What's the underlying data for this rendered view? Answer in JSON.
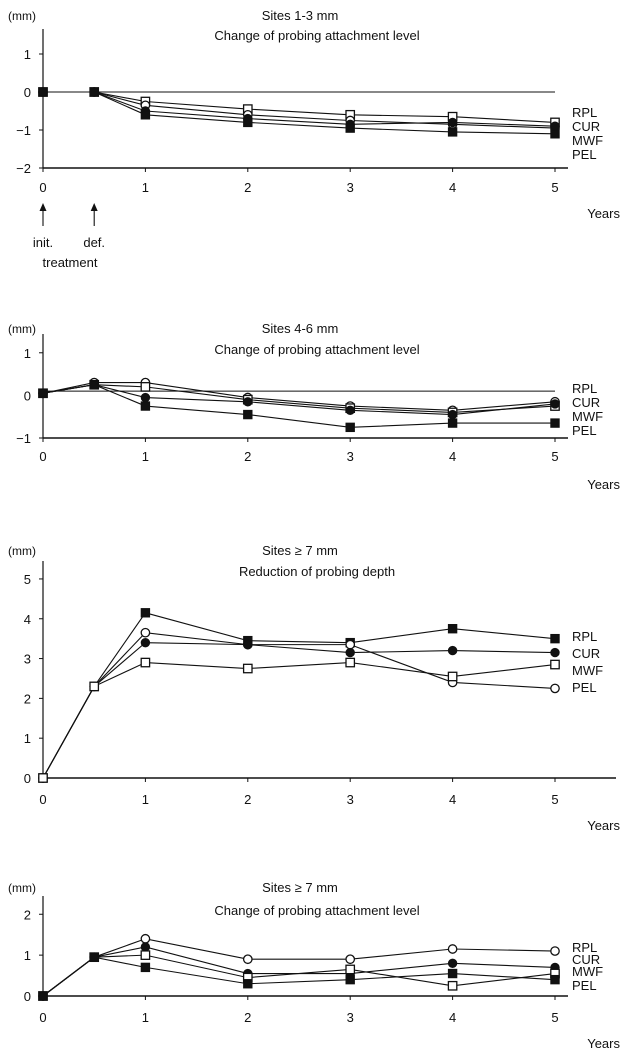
{
  "chart_data": [
    {
      "type": "line",
      "unit": "(mm)",
      "title_line1": "Sites 1-3 mm",
      "title_line2": "Change of probing attachment level",
      "xlabel": "Years",
      "x": [
        0,
        0.5,
        1,
        2,
        3,
        4,
        5
      ],
      "xticks": [
        0,
        1,
        2,
        3,
        4,
        5
      ],
      "yticks": [
        1,
        0,
        -1,
        -2
      ],
      "ylim": [
        -2,
        1.5
      ],
      "reference_line": 0,
      "legend": [
        "RPL",
        "CUR",
        "MWF",
        "PEL"
      ],
      "annotations": [
        "init.",
        "def.",
        "treatment"
      ],
      "series": [
        {
          "marker": "open-square",
          "values": [
            0,
            0,
            -0.25,
            -0.45,
            -0.6,
            -0.65,
            -0.8
          ]
        },
        {
          "marker": "open-circle",
          "values": [
            0,
            0,
            -0.35,
            -0.6,
            -0.75,
            -0.85,
            -0.95
          ]
        },
        {
          "marker": "filled-circle",
          "values": [
            0,
            0,
            -0.5,
            -0.7,
            -0.85,
            -0.8,
            -0.9
          ]
        },
        {
          "marker": "filled-square",
          "values": [
            0,
            0,
            -0.6,
            -0.8,
            -0.95,
            -1.05,
            -1.1
          ]
        }
      ]
    },
    {
      "type": "line",
      "unit": "(mm)",
      "title_line1": "Sites 4-6 mm",
      "title_line2": "Change of probing attachment level",
      "xlabel": "Years",
      "x": [
        0,
        0.5,
        1,
        2,
        3,
        4,
        5
      ],
      "xticks": [
        0,
        1,
        2,
        3,
        4,
        5
      ],
      "yticks": [
        1,
        0,
        -1
      ],
      "ylim": [
        -1,
        1.3
      ],
      "reference_line": 0.1,
      "legend": [
        "RPL",
        "CUR",
        "MWF",
        "PEL"
      ],
      "series": [
        {
          "marker": "open-circle",
          "values": [
            0.05,
            0.3,
            0.3,
            -0.05,
            -0.25,
            -0.35,
            -0.15
          ]
        },
        {
          "marker": "open-square",
          "values": [
            0.05,
            0.25,
            0.2,
            -0.1,
            -0.3,
            -0.4,
            -0.25
          ]
        },
        {
          "marker": "filled-circle",
          "values": [
            0.05,
            0.25,
            -0.05,
            -0.15,
            -0.35,
            -0.45,
            -0.2
          ]
        },
        {
          "marker": "filled-square",
          "values": [
            0.05,
            0.25,
            -0.25,
            -0.45,
            -0.75,
            -0.65,
            -0.65
          ]
        }
      ]
    },
    {
      "type": "line",
      "unit": "(mm)",
      "title_line1": "Sites ≥ 7 mm",
      "title_line2": "Reduction of probing depth",
      "xlabel": "Years",
      "x": [
        0,
        0.5,
        1,
        2,
        3,
        4,
        5
      ],
      "xticks": [
        0,
        1,
        2,
        3,
        4,
        5
      ],
      "yticks": [
        0,
        1,
        2,
        3,
        4,
        5
      ],
      "ylim": [
        0,
        5.3
      ],
      "legend": [
        "RPL",
        "CUR",
        "MWF",
        "PEL"
      ],
      "series": [
        {
          "marker": "filled-square",
          "values": [
            0,
            2.3,
            4.15,
            3.45,
            3.4,
            3.75,
            3.5
          ]
        },
        {
          "marker": "open-circle",
          "values": [
            0,
            2.3,
            3.65,
            3.35,
            3.35,
            2.4,
            2.25
          ]
        },
        {
          "marker": "filled-circle",
          "values": [
            0,
            2.3,
            3.4,
            3.35,
            3.15,
            3.2,
            3.15
          ]
        },
        {
          "marker": "open-square",
          "values": [
            0,
            2.3,
            2.9,
            2.75,
            2.9,
            2.55,
            2.85
          ]
        }
      ]
    },
    {
      "type": "line",
      "unit": "(mm)",
      "title_line1": "Sites ≥ 7 mm",
      "title_line2": "Change of probing attachment level",
      "xlabel": "Years",
      "x": [
        0,
        0.5,
        1,
        2,
        3,
        4,
        5
      ],
      "xticks": [
        0,
        1,
        2,
        3,
        4,
        5
      ],
      "yticks": [
        0,
        1,
        2
      ],
      "ylim": [
        0,
        2.3
      ],
      "legend": [
        "RPL",
        "CUR",
        "MWF",
        "PEL"
      ],
      "series": [
        {
          "marker": "open-circle",
          "values": [
            0,
            0.95,
            1.4,
            0.9,
            0.9,
            1.15,
            1.1
          ]
        },
        {
          "marker": "filled-circle",
          "values": [
            0,
            0.95,
            1.2,
            0.55,
            0.55,
            0.8,
            0.7
          ]
        },
        {
          "marker": "open-square",
          "values": [
            0,
            0.95,
            1.0,
            0.45,
            0.65,
            0.25,
            0.55
          ]
        },
        {
          "marker": "filled-square",
          "values": [
            0,
            0.95,
            0.7,
            0.3,
            0.4,
            0.55,
            0.4
          ]
        }
      ]
    }
  ]
}
